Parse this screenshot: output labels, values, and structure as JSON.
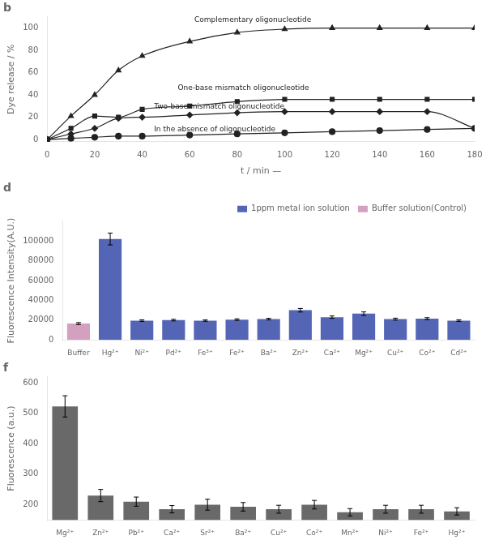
{
  "chart_data": [
    {
      "type": "line",
      "title": "b",
      "xlabel": "t / min —",
      "ylabel": "Dye release / %",
      "xlim": [
        0,
        180
      ],
      "ylim": [
        -2,
        110
      ],
      "xticks": [
        0,
        20,
        40,
        60,
        80,
        100,
        120,
        140,
        160,
        180
      ],
      "yticks": [
        0,
        20,
        40,
        60,
        80,
        100
      ],
      "grid": false,
      "x": [
        0,
        10,
        20,
        30,
        40,
        60,
        80,
        100,
        120,
        140,
        160,
        180
      ],
      "series": [
        {
          "name": "Complementary oligonucleotide",
          "color": "#222222",
          "marker": "triangle",
          "values": [
            0,
            21,
            40,
            62,
            75,
            88,
            96,
            99,
            100,
            100,
            100,
            100
          ]
        },
        {
          "name": "One-base mismatch oligonucleotide",
          "color": "#222222",
          "marker": "square",
          "values": [
            0,
            10,
            21,
            20,
            27,
            30,
            34,
            36,
            36,
            36,
            36,
            36
          ]
        },
        {
          "name": "Two-base mismatch oligonucleotide",
          "color": "#222222",
          "marker": "diamond",
          "values": [
            0,
            5,
            10,
            19,
            20,
            22,
            24,
            25,
            25,
            25,
            25,
            10
          ]
        },
        {
          "name": "In the absence of oligonucleotide",
          "color": "#222222",
          "marker": "circle",
          "values": [
            0,
            1,
            2,
            3,
            3,
            4,
            5,
            6,
            7,
            8,
            9,
            10
          ]
        }
      ],
      "annotations": [
        {
          "text": "Complementary oligonucleotide",
          "x": 62,
          "y": 104
        },
        {
          "text": "One-base mismatch oligonucleotide",
          "x": 55,
          "y": 43
        },
        {
          "text": "Two-base mismatch oligonucleotide",
          "x": 45,
          "y": 26
        },
        {
          "text": "In the absence of oligonucleotide",
          "x": 45,
          "y": 6
        }
      ]
    },
    {
      "type": "bar",
      "title": "d",
      "ylabel": "Fluorescence Intensity(A.U.)",
      "ylim": [
        0,
        120000
      ],
      "yticks": [
        0,
        20000,
        40000,
        60000,
        80000,
        100000
      ],
      "grid": false,
      "legend": "upper right",
      "categories": [
        "Buffer",
        "Hg²⁺",
        "Ni²⁺",
        "Pd²⁺",
        "Fe³⁺",
        "Fe²⁺",
        "Ba²⁺",
        "Zn²⁺",
        "Ca²⁺",
        "Mg²⁺",
        "Cu²⁺",
        "Co²⁺",
        "Cd²⁺"
      ],
      "series": [
        {
          "name": "1ppm metal ion solution",
          "color": "#5565b5",
          "values": [
            null,
            102000,
            19500,
            20000,
            19500,
            20500,
            21000,
            30000,
            23000,
            26500,
            21000,
            21500,
            19500
          ],
          "errors": [
            null,
            6000,
            800,
            800,
            700,
            800,
            800,
            1800,
            1200,
            1800,
            1000,
            1000,
            800
          ]
        },
        {
          "name": "Buffer solution(Control)",
          "color": "#d4a0c0",
          "values": [
            16500,
            null,
            null,
            null,
            null,
            null,
            null,
            null,
            null,
            null,
            null,
            null,
            null
          ],
          "errors": [
            1000,
            null,
            null,
            null,
            null,
            null,
            null,
            null,
            null,
            null,
            null,
            null,
            null
          ]
        }
      ]
    },
    {
      "type": "bar",
      "title": "f",
      "ylabel": "Fluorescence (a.u.)",
      "ylim": [
        150,
        620
      ],
      "yticks": [
        200,
        300,
        400,
        500,
        600
      ],
      "grid": false,
      "categories": [
        "Mg²⁺",
        "Zn²⁺",
        "Pb²⁺",
        "Ca²⁺",
        "Sr²⁺",
        "Ba²⁺",
        "Cu²⁺",
        "Co²⁺",
        "Mn²⁺",
        "Ni²⁺",
        "Fe²⁺",
        "Hg²⁺"
      ],
      "series": [
        {
          "color": "#696969",
          "values": [
            523,
            230,
            210,
            185,
            200,
            193,
            185,
            200,
            175,
            185,
            185,
            178
          ],
          "errors": [
            35,
            20,
            15,
            12,
            18,
            14,
            13,
            14,
            12,
            13,
            13,
            12
          ]
        }
      ]
    }
  ]
}
